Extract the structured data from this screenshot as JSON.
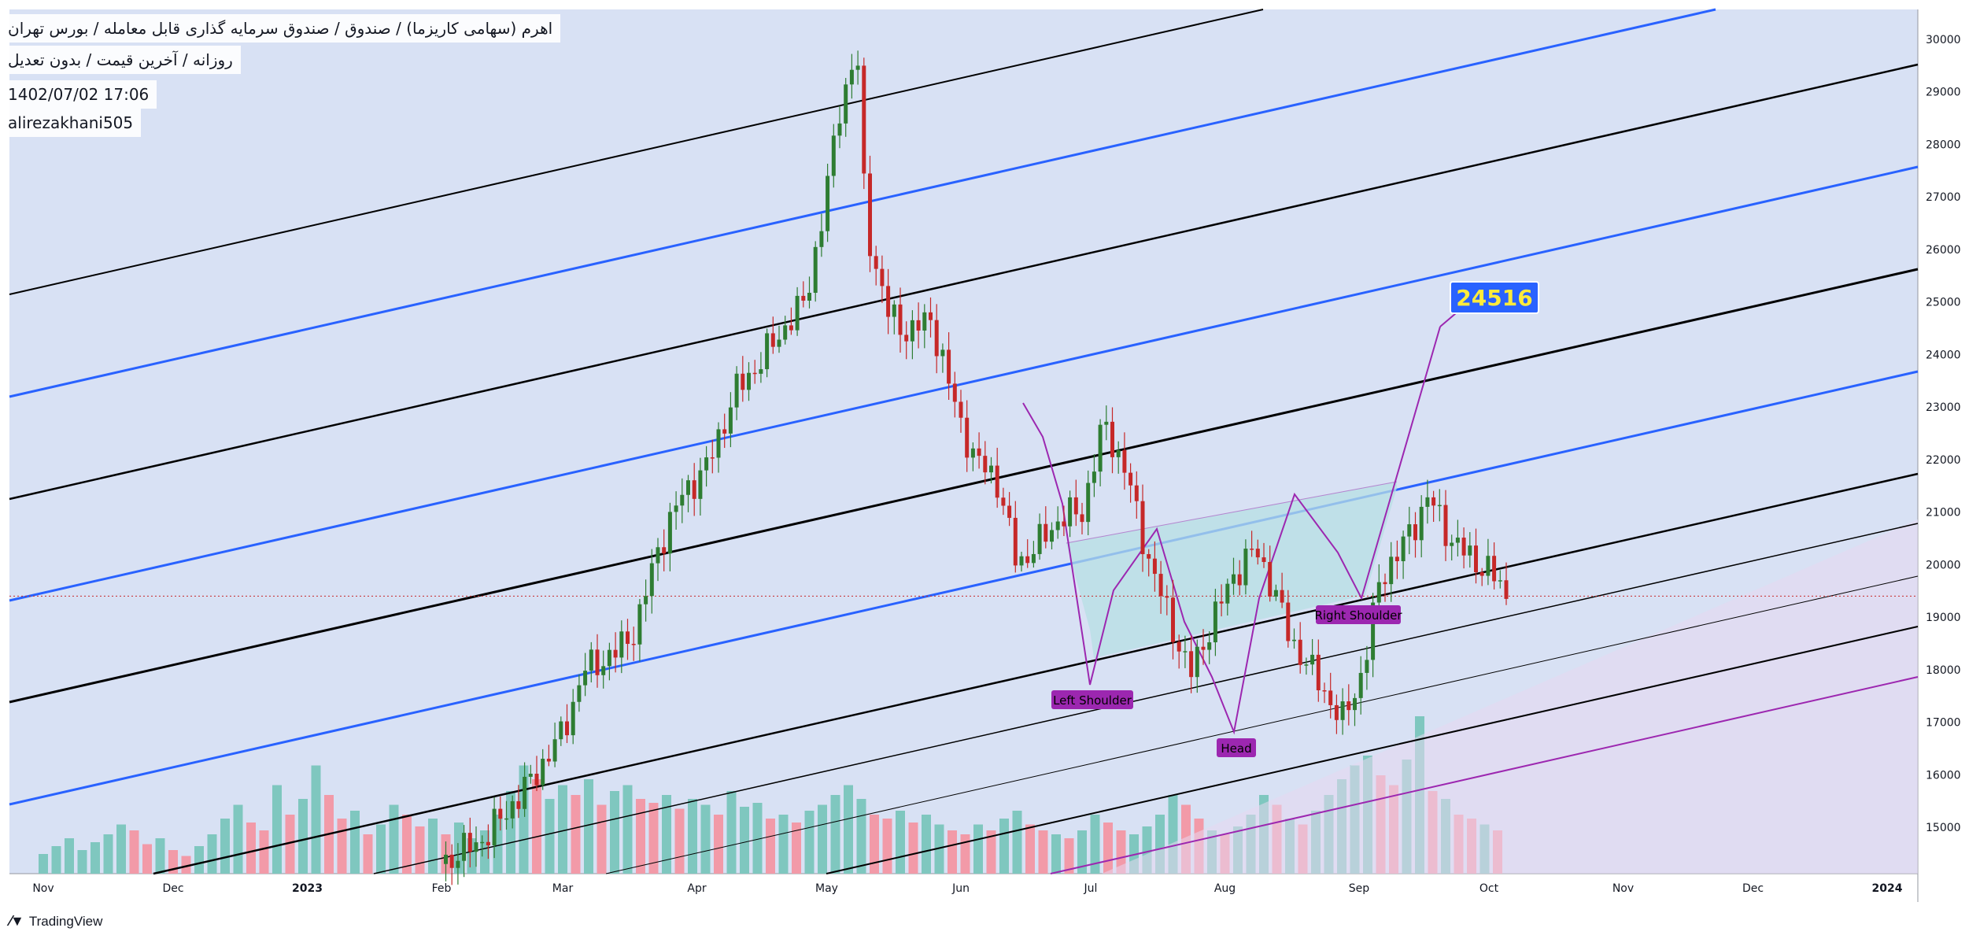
{
  "header": {
    "title": "اهرم (سهامی کاریزما) / صندوق / صندوق سرمایه گذاری قابل معامله / بورس تهران",
    "subtitle": "روزانه / آخرین قیمت / بدون تعدیل",
    "datetime": "1402/07/02 17:06",
    "author": "alirezakhani505"
  },
  "branding": {
    "name": "TradingView",
    "logo_icon": "tradingview-logo-icon"
  },
  "colors": {
    "background": "#d8e1f4",
    "up_candle": "#2e7d32",
    "down_candle": "#c62828",
    "up_volume": "#7fc7bf",
    "down_volume": "#f29aa8",
    "channel_black": "#000000",
    "channel_blue": "#2962ff",
    "pattern": "#9c27b0",
    "pattern_fill": "#b7dfe4",
    "target_label_bg": "#2962ff",
    "target_label_text": "#ffeb3b",
    "pattern_label_bg": "#9c27b0"
  },
  "annotations": {
    "target": "24516",
    "left_shoulder": "Left Shoulder",
    "head": "Head",
    "right_shoulder": "Right Shoulder"
  },
  "chart_data": {
    "type": "candlestick",
    "title": "",
    "xlabel": "",
    "ylabel": "",
    "y_range": [
      14200,
      30400
    ],
    "y_ticks": [
      15000,
      16000,
      17000,
      18000,
      19000,
      20000,
      21000,
      22000,
      23000,
      24000,
      25000,
      26000,
      27000,
      28000,
      29000,
      30000
    ],
    "y_tick_labels": [
      "15000",
      "16000",
      "17000",
      "18000",
      "19000",
      "20000",
      "21000",
      "22000",
      "23000",
      "24000",
      "25000",
      "26000",
      "27000",
      "28000",
      "29000",
      "30000"
    ],
    "x_range_days": [
      0,
      450
    ],
    "x_ticks": [
      {
        "label": "Nov",
        "day": 0
      },
      {
        "label": "Dec",
        "day": 30
      },
      {
        "label": "2023",
        "day": 61
      },
      {
        "label": "Feb",
        "day": 92
      },
      {
        "label": "Mar",
        "day": 120
      },
      {
        "label": "Apr",
        "day": 151
      },
      {
        "label": "May",
        "day": 181
      },
      {
        "label": "Jun",
        "day": 212
      },
      {
        "label": "Jul",
        "day": 242
      },
      {
        "label": "Aug",
        "day": 273
      },
      {
        "label": "Sep",
        "day": 304
      },
      {
        "label": "Oct",
        "day": 334
      },
      {
        "label": "Nov",
        "day": 365
      },
      {
        "label": "Dec",
        "day": 395
      },
      {
        "label": "2024",
        "day": 426
      }
    ],
    "current_price": 19400,
    "price_path": [
      [
        92,
        14300
      ],
      [
        102,
        14800
      ],
      [
        112,
        15800
      ],
      [
        120,
        16800
      ],
      [
        125,
        18000
      ],
      [
        132,
        18300
      ],
      [
        137,
        18800
      ],
      [
        142,
        20300
      ],
      [
        148,
        21400
      ],
      [
        153,
        21800
      ],
      [
        160,
        23300
      ],
      [
        165,
        23800
      ],
      [
        172,
        24600
      ],
      [
        176,
        25000
      ],
      [
        180,
        26600
      ],
      [
        184,
        28700
      ],
      [
        188,
        29800
      ],
      [
        190,
        26500
      ],
      [
        195,
        24800
      ],
      [
        200,
        24400
      ],
      [
        205,
        24700
      ],
      [
        210,
        23200
      ],
      [
        215,
        22000
      ],
      [
        220,
        21700
      ],
      [
        225,
        20000
      ],
      [
        230,
        20400
      ],
      [
        235,
        20900
      ],
      [
        240,
        21000
      ],
      [
        245,
        22700
      ],
      [
        250,
        21800
      ],
      [
        255,
        20200
      ],
      [
        260,
        19000
      ],
      [
        265,
        17900
      ],
      [
        270,
        18900
      ],
      [
        275,
        19800
      ],
      [
        280,
        20300
      ],
      [
        284,
        19600
      ],
      [
        288,
        18600
      ],
      [
        292,
        18100
      ],
      [
        296,
        17600
      ],
      [
        300,
        17000
      ],
      [
        305,
        18000
      ],
      [
        309,
        19800
      ],
      [
        313,
        20200
      ],
      [
        317,
        20800
      ],
      [
        320,
        21300
      ],
      [
        325,
        20500
      ],
      [
        330,
        20100
      ],
      [
        334,
        19900
      ],
      [
        338,
        19400
      ]
    ],
    "volume_range": [
      0,
      100
    ],
    "volume": [
      [
        0,
        10
      ],
      [
        3,
        14
      ],
      [
        6,
        18
      ],
      [
        9,
        12
      ],
      [
        12,
        16
      ],
      [
        15,
        20
      ],
      [
        18,
        25
      ],
      [
        21,
        22
      ],
      [
        24,
        15
      ],
      [
        27,
        18
      ],
      [
        30,
        12
      ],
      [
        33,
        9
      ],
      [
        36,
        14
      ],
      [
        39,
        20
      ],
      [
        42,
        28
      ],
      [
        45,
        35
      ],
      [
        48,
        26
      ],
      [
        51,
        22
      ],
      [
        54,
        45
      ],
      [
        57,
        30
      ],
      [
        60,
        38
      ],
      [
        63,
        55
      ],
      [
        66,
        40
      ],
      [
        69,
        28
      ],
      [
        72,
        32
      ],
      [
        75,
        20
      ],
      [
        78,
        25
      ],
      [
        81,
        35
      ],
      [
        84,
        30
      ],
      [
        87,
        24
      ],
      [
        90,
        28
      ],
      [
        93,
        20
      ],
      [
        96,
        26
      ],
      [
        99,
        18
      ],
      [
        102,
        22
      ],
      [
        105,
        30
      ],
      [
        108,
        42
      ],
      [
        111,
        55
      ],
      [
        114,
        48
      ],
      [
        117,
        38
      ],
      [
        120,
        45
      ],
      [
        123,
        40
      ],
      [
        126,
        48
      ],
      [
        129,
        35
      ],
      [
        132,
        42
      ],
      [
        135,
        45
      ],
      [
        138,
        38
      ],
      [
        141,
        36
      ],
      [
        144,
        40
      ],
      [
        147,
        33
      ],
      [
        150,
        38
      ],
      [
        153,
        35
      ],
      [
        156,
        30
      ],
      [
        159,
        42
      ],
      [
        162,
        34
      ],
      [
        165,
        36
      ],
      [
        168,
        28
      ],
      [
        171,
        30
      ],
      [
        174,
        26
      ],
      [
        177,
        32
      ],
      [
        180,
        35
      ],
      [
        183,
        40
      ],
      [
        186,
        45
      ],
      [
        189,
        38
      ],
      [
        192,
        30
      ],
      [
        195,
        28
      ],
      [
        198,
        32
      ],
      [
        201,
        26
      ],
      [
        204,
        30
      ],
      [
        207,
        25
      ],
      [
        210,
        22
      ],
      [
        213,
        20
      ],
      [
        216,
        25
      ],
      [
        219,
        22
      ],
      [
        222,
        28
      ],
      [
        225,
        32
      ],
      [
        228,
        25
      ],
      [
        231,
        22
      ],
      [
        234,
        20
      ],
      [
        237,
        18
      ],
      [
        240,
        22
      ],
      [
        243,
        30
      ],
      [
        246,
        26
      ],
      [
        249,
        22
      ],
      [
        252,
        20
      ],
      [
        255,
        24
      ],
      [
        258,
        30
      ],
      [
        261,
        40
      ],
      [
        264,
        35
      ],
      [
        267,
        28
      ],
      [
        270,
        22
      ],
      [
        273,
        20
      ],
      [
        276,
        24
      ],
      [
        279,
        30
      ],
      [
        282,
        40
      ],
      [
        285,
        35
      ],
      [
        288,
        28
      ],
      [
        291,
        25
      ],
      [
        294,
        32
      ],
      [
        297,
        40
      ],
      [
        300,
        48
      ],
      [
        303,
        55
      ],
      [
        306,
        60
      ],
      [
        309,
        50
      ],
      [
        312,
        45
      ],
      [
        315,
        58
      ],
      [
        318,
        80
      ],
      [
        321,
        42
      ],
      [
        324,
        38
      ],
      [
        327,
        30
      ],
      [
        330,
        28
      ],
      [
        333,
        25
      ],
      [
        336,
        22
      ]
    ]
  }
}
